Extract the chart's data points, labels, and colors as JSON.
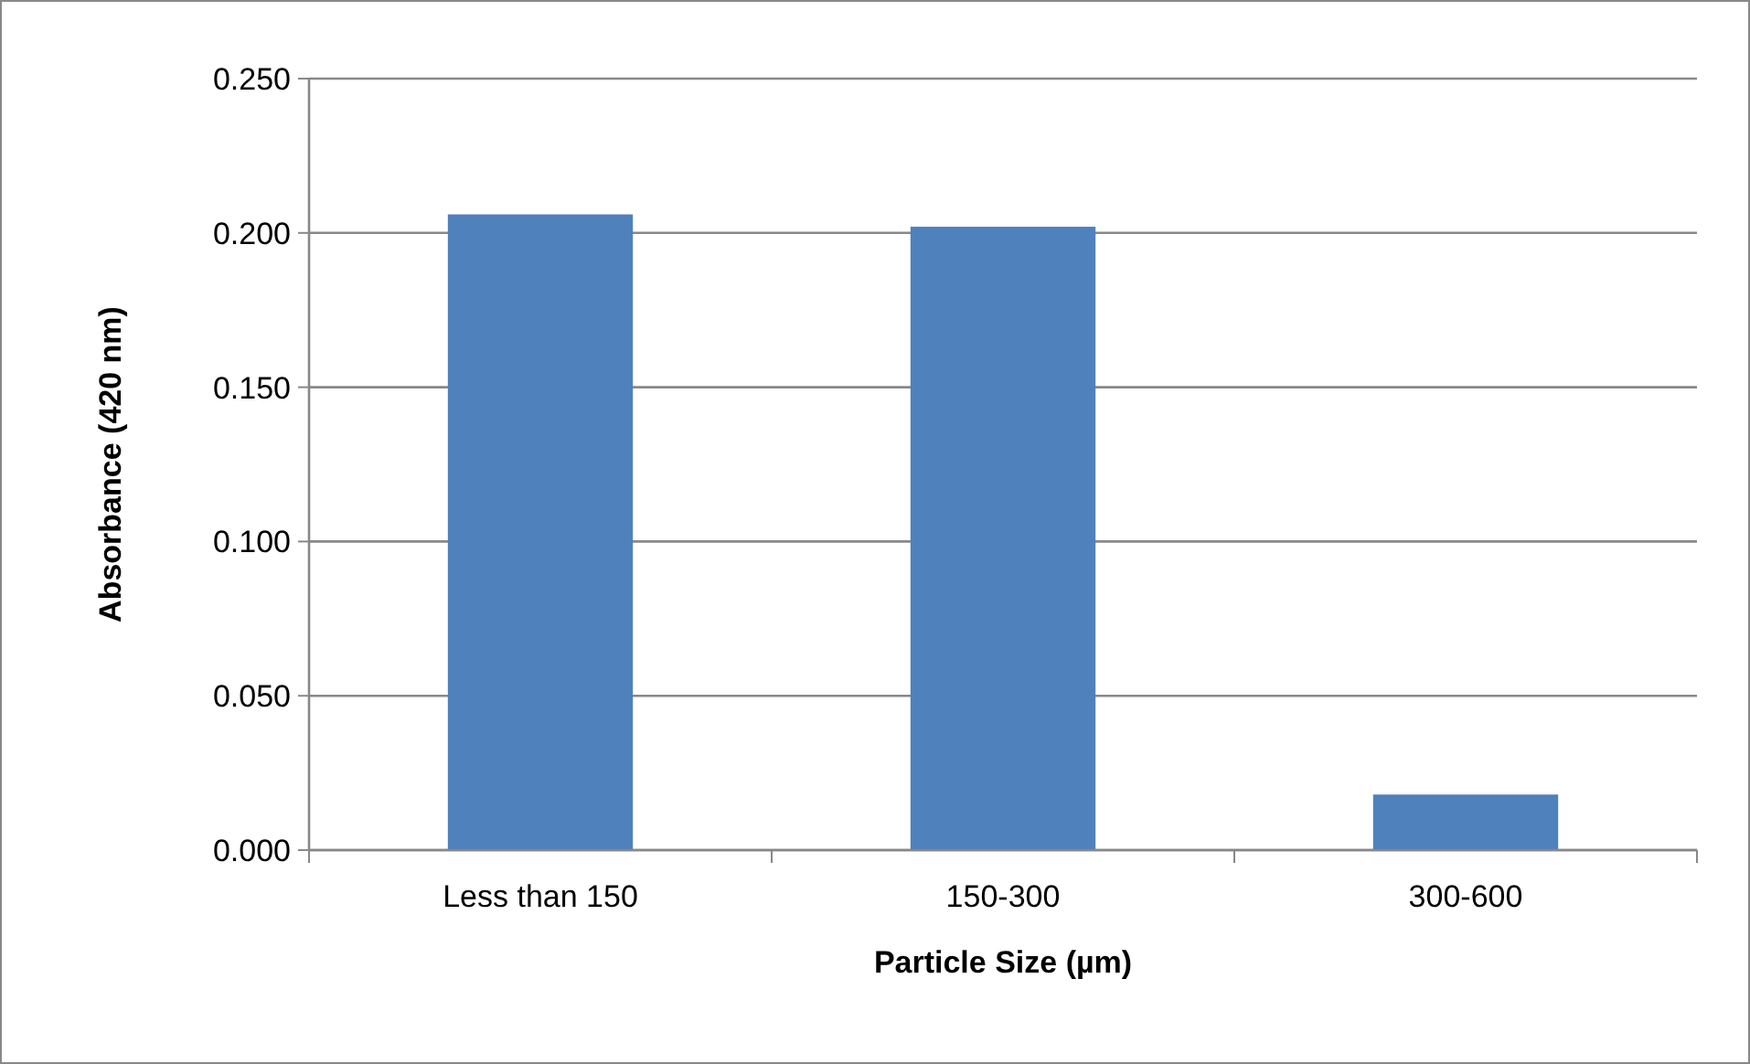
{
  "chart_data": {
    "type": "bar",
    "xlabel": "Particle Size (µm)",
    "ylabel": "Absorbance (420 nm)",
    "categories": [
      "Less than 150",
      "150-300",
      "300-600"
    ],
    "values": [
      0.206,
      0.202,
      0.018
    ],
    "color": "#4f81bd",
    "ylim": [
      0,
      0.25
    ],
    "yticks": [
      {
        "value": 0,
        "label": "0.000"
      },
      {
        "value": 0.05,
        "label": "0.050"
      },
      {
        "value": 0.1,
        "label": "0.100"
      },
      {
        "value": 0.15,
        "label": "0.150"
      },
      {
        "value": 0.2,
        "label": "0.200"
      },
      {
        "value": 0.25,
        "label": "0.250"
      }
    ],
    "grid": "y"
  }
}
